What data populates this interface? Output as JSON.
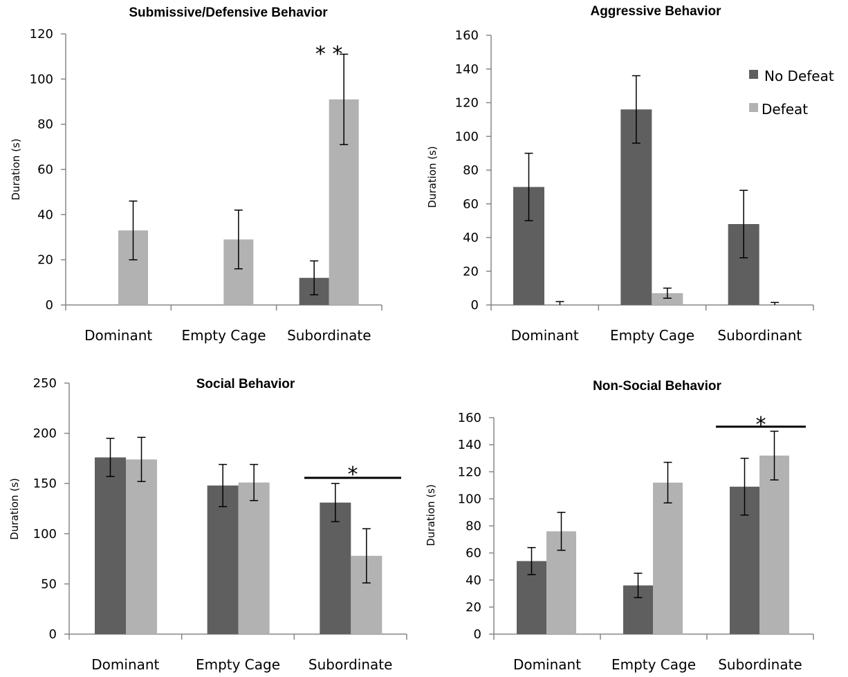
{
  "colors": {
    "no_defeat": "#5f5f5f",
    "defeat": "#b2b2b2",
    "axis": "#878787",
    "error_bar": "#000000"
  },
  "chart_data": [
    {
      "type": "bar",
      "title": "Submissive/Defensive Behavior",
      "ylabel": "Duration (s)",
      "categories": [
        "Dominant",
        "Empty Cage",
        "Subordinate"
      ],
      "ylim": [
        0,
        120
      ],
      "yticks": [
        0,
        20,
        40,
        60,
        80,
        100,
        120
      ],
      "series": [
        {
          "name": "No Defeat",
          "values": [
            0,
            0,
            12
          ],
          "errors": [
            0,
            0,
            7.5
          ]
        },
        {
          "name": "Defeat",
          "values": [
            33,
            29,
            91
          ],
          "errors": [
            13,
            13,
            20
          ]
        }
      ],
      "annotation": {
        "text": "* *",
        "category": 2,
        "bar_line": false
      }
    },
    {
      "type": "bar",
      "title": "Aggressive Behavior",
      "ylabel": "Duration (s)",
      "categories": [
        "Dominant",
        "Empty Cage",
        "Subordinant"
      ],
      "ylim": [
        0,
        160
      ],
      "yticks": [
        0,
        20,
        40,
        60,
        80,
        100,
        120,
        140,
        160
      ],
      "legend": "top-right",
      "series": [
        {
          "name": "No Defeat",
          "values": [
            70,
            116,
            48
          ],
          "errors": [
            20,
            20,
            20
          ]
        },
        {
          "name": "Defeat",
          "values": [
            0,
            7,
            0
          ],
          "errors": [
            2,
            3,
            1.5
          ]
        }
      ]
    },
    {
      "type": "bar",
      "title": "Social Behavior",
      "ylabel": "Duration (s)",
      "categories": [
        "Dominant",
        "Empty Cage",
        "Subordinate"
      ],
      "ylim": [
        0,
        250
      ],
      "yticks": [
        0,
        50,
        100,
        150,
        200,
        250
      ],
      "series": [
        {
          "name": "No Defeat",
          "values": [
            176,
            148,
            131
          ],
          "errors": [
            19,
            21,
            19
          ]
        },
        {
          "name": "Defeat",
          "values": [
            174,
            151,
            78
          ],
          "errors": [
            22,
            18,
            27
          ]
        }
      ],
      "annotation": {
        "text": "*",
        "category": 2,
        "bar_line": true
      }
    },
    {
      "type": "bar",
      "title": "Non-Social Behavior",
      "ylabel": "Duration (s)",
      "categories": [
        "Dominant",
        "Empty Cage",
        "Subordinate"
      ],
      "ylim": [
        0,
        160
      ],
      "yticks": [
        0,
        20,
        40,
        60,
        80,
        100,
        120,
        140,
        160
      ],
      "series": [
        {
          "name": "No Defeat",
          "values": [
            54,
            36,
            109
          ],
          "errors": [
            10,
            9,
            21
          ]
        },
        {
          "name": "Defeat",
          "values": [
            76,
            112,
            132
          ],
          "errors": [
            14,
            15,
            18
          ]
        }
      ],
      "annotation": {
        "text": "*",
        "category": 2,
        "bar_line": true
      }
    }
  ]
}
